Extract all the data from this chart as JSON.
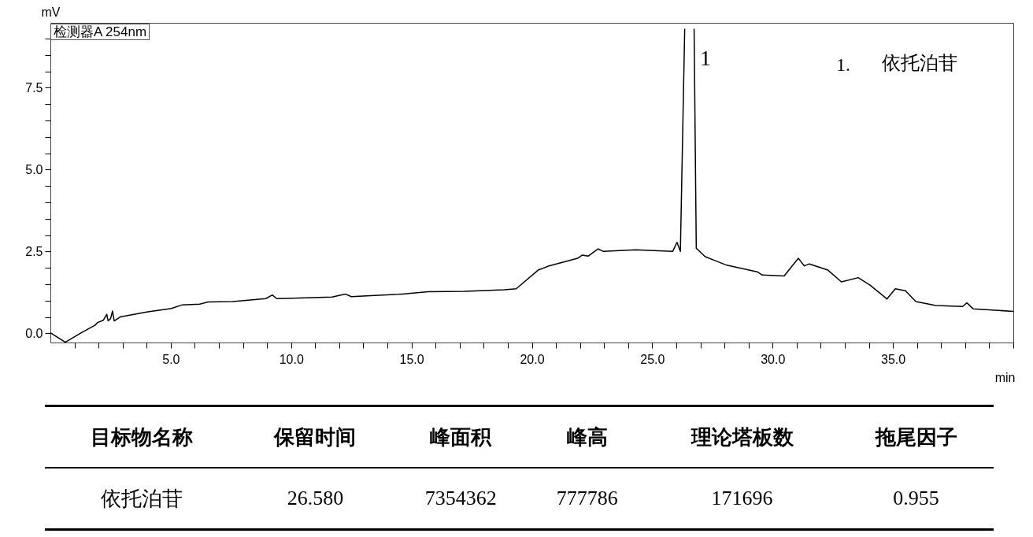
{
  "chart_data": {
    "type": "line",
    "xlabel": "min",
    "ylabel": "mV",
    "x": [
      0,
      0.62,
      1.24,
      1.86,
      1.96,
      2.2,
      2.34,
      2.4,
      2.5,
      2.58,
      2.65,
      2.9,
      4.0,
      5.03,
      5.48,
      6.2,
      6.54,
      7.57,
      8.95,
      9.22,
      9.4,
      10.32,
      11.7,
      12.25,
      12.5,
      14.45,
      15.69,
      17.2,
      18.86,
      19.35,
      20.26,
      20.68,
      21.9,
      22.1,
      22.35,
      22.75,
      22.97,
      24.3,
      25.85,
      26.03,
      26.17,
      26.35,
      26.55,
      26.74,
      26.83,
      27.2,
      27.54,
      28.1,
      29.36,
      29.57,
      30.48,
      31.07,
      31.32,
      31.53,
      32.3,
      32.86,
      33.56,
      34.05,
      34.75,
      35.1,
      35.52,
      35.95,
      36.78,
      37.9,
      38.07,
      38.33,
      40.0
    ],
    "series": [
      {
        "color": "#000000",
        "values": [
          0.02,
          -0.27,
          0.0,
          0.25,
          0.33,
          0.4,
          0.58,
          0.38,
          0.45,
          0.68,
          0.38,
          0.5,
          0.65,
          0.76,
          0.87,
          0.89,
          0.96,
          0.97,
          1.06,
          1.17,
          1.06,
          1.08,
          1.11,
          1.2,
          1.12,
          1.19,
          1.27,
          1.28,
          1.33,
          1.36,
          1.93,
          2.05,
          2.29,
          2.39,
          2.36,
          2.58,
          2.5,
          2.55,
          2.5,
          2.78,
          2.5,
          9.3,
          null,
          9.3,
          2.6,
          2.34,
          2.24,
          2.08,
          1.88,
          1.78,
          1.75,
          2.29,
          2.06,
          2.12,
          1.93,
          1.57,
          1.7,
          1.47,
          1.05,
          1.36,
          1.3,
          0.97,
          0.85,
          0.82,
          0.93,
          0.75,
          0.67
        ]
      }
    ],
    "xlim": [
      0,
      40
    ],
    "xticks": [
      {
        "value": 1,
        "label": null
      },
      {
        "value": 2,
        "label": null
      },
      {
        "value": 3,
        "label": null
      },
      {
        "value": 4,
        "label": null
      },
      {
        "value": 5,
        "label": "5.0"
      },
      {
        "value": 6,
        "label": null
      },
      {
        "value": 7,
        "label": null
      },
      {
        "value": 8,
        "label": null
      },
      {
        "value": 9,
        "label": null
      },
      {
        "value": 10,
        "label": "10.0"
      },
      {
        "value": 11,
        "label": null
      },
      {
        "value": 12,
        "label": null
      },
      {
        "value": 13,
        "label": null
      },
      {
        "value": 14,
        "label": null
      },
      {
        "value": 15,
        "label": "15.0"
      },
      {
        "value": 16,
        "label": null
      },
      {
        "value": 17,
        "label": null
      },
      {
        "value": 18,
        "label": null
      },
      {
        "value": 19,
        "label": null
      },
      {
        "value": 20,
        "label": "20.0"
      },
      {
        "value": 21,
        "label": null
      },
      {
        "value": 22,
        "label": null
      },
      {
        "value": 23,
        "label": null
      },
      {
        "value": 24,
        "label": null
      },
      {
        "value": 25,
        "label": "25.0"
      },
      {
        "value": 26,
        "label": null
      },
      {
        "value": 27,
        "label": null
      },
      {
        "value": 28,
        "label": null
      },
      {
        "value": 29,
        "label": null
      },
      {
        "value": 30,
        "label": "30.0"
      },
      {
        "value": 31,
        "label": null
      },
      {
        "value": 32,
        "label": null
      },
      {
        "value": 33,
        "label": null
      },
      {
        "value": 34,
        "label": null
      },
      {
        "value": 35,
        "label": "35.0"
      },
      {
        "value": 36,
        "label": null
      },
      {
        "value": 37,
        "label": null
      },
      {
        "value": 38,
        "label": null
      },
      {
        "value": 39,
        "label": null
      },
      {
        "value": 40,
        "label": null
      }
    ],
    "ylim": [
      -0.28,
      9.48
    ],
    "yticks": [
      {
        "value": 0,
        "label": "0.0"
      },
      {
        "value": 0.5,
        "label": null
      },
      {
        "value": 1,
        "label": null
      },
      {
        "value": 1.5,
        "label": null
      },
      {
        "value": 2,
        "label": null
      },
      {
        "value": 2.5,
        "label": "2.5"
      },
      {
        "value": 3,
        "label": null
      },
      {
        "value": 3.5,
        "label": null
      },
      {
        "value": 4,
        "label": null
      },
      {
        "value": 4.5,
        "label": null
      },
      {
        "value": 5,
        "label": "5.0"
      },
      {
        "value": 5.5,
        "label": null
      },
      {
        "value": 6,
        "label": null
      },
      {
        "value": 6.5,
        "label": null
      },
      {
        "value": 7,
        "label": null
      },
      {
        "value": 7.5,
        "label": "7.5"
      },
      {
        "value": 8,
        "label": null
      },
      {
        "value": 8.5,
        "label": null
      },
      {
        "value": 9,
        "label": null
      }
    ],
    "grid": false,
    "annotations": [
      "检测器A 254nm",
      "1",
      "1.",
      "依托泊苷",
      "目标物名称",
      "保留时间",
      "峰面积",
      "峰高",
      "理论塔板数",
      "拖尾因子",
      "依托泊苷",
      "26.580",
      "7354362",
      "777786",
      "171696",
      "0.955"
    ]
  }
}
